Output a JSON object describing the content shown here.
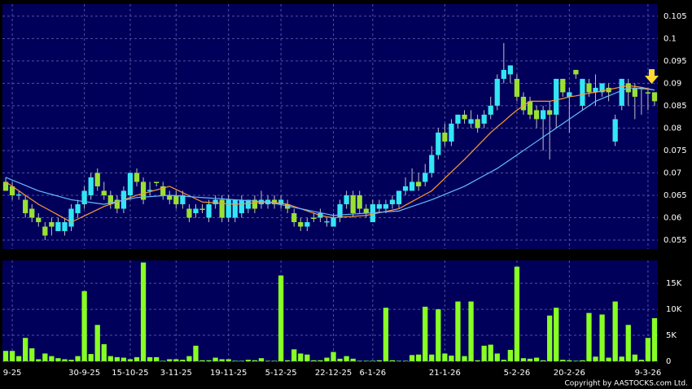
{
  "chart_data": {
    "type": "candlestick",
    "copyright": "Copyright by AASTOCKS.com Ltd.",
    "categories": [
      null,
      "9-25",
      null,
      null,
      null,
      null,
      null,
      null,
      null,
      null,
      null,
      null,
      "30-9-25",
      null,
      null,
      null,
      null,
      null,
      null,
      "15-10-25",
      null,
      null,
      null,
      null,
      null,
      null,
      "3-11-25",
      null,
      null,
      null,
      null,
      null,
      null,
      null,
      "19-11-25",
      null,
      null,
      null,
      null,
      null,
      null,
      null,
      "5-12-25",
      null,
      null,
      null,
      null,
      null,
      null,
      null,
      "22-12-25",
      null,
      null,
      null,
      null,
      null,
      "6-1-26",
      null,
      null,
      null,
      null,
      null,
      null,
      null,
      null,
      null,
      null,
      "21-1-26",
      null,
      null,
      null,
      null,
      null,
      null,
      null,
      null,
      null,
      null,
      "5-2-26",
      null,
      null,
      null,
      null,
      null,
      null,
      null,
      "20-2-26",
      null,
      null,
      null,
      null,
      null,
      null,
      null,
      null,
      null,
      null,
      null,
      "9-3-26",
      null
    ],
    "candles": [
      [
        0.068,
        0.069,
        0.066,
        0.066
      ],
      [
        0.067,
        0.068,
        0.064,
        0.065
      ],
      [
        0.065,
        0.066,
        0.064,
        0.0652
      ],
      [
        0.064,
        0.065,
        0.06,
        0.061
      ],
      [
        0.062,
        0.063,
        0.059,
        0.06
      ],
      [
        0.06,
        0.061,
        0.058,
        0.059
      ],
      [
        0.058,
        0.059,
        0.055,
        0.056
      ],
      [
        0.059,
        0.06,
        0.056,
        0.058
      ],
      [
        0.057,
        0.06,
        0.057,
        0.059
      ],
      [
        0.057,
        0.06,
        0.056,
        0.059
      ],
      [
        0.058,
        0.063,
        0.057,
        0.062
      ],
      [
        0.061,
        0.064,
        0.06,
        0.063
      ],
      [
        0.063,
        0.067,
        0.062,
        0.066
      ],
      [
        0.065,
        0.07,
        0.064,
        0.069
      ],
      [
        0.07,
        0.071,
        0.066,
        0.067
      ],
      [
        0.066,
        0.068,
        0.064,
        0.065
      ],
      [
        0.065,
        0.066,
        0.062,
        0.063
      ],
      [
        0.064,
        0.065,
        0.061,
        0.062
      ],
      [
        0.062,
        0.067,
        0.061,
        0.066
      ],
      [
        0.065,
        0.07,
        0.064,
        0.07
      ],
      [
        0.07,
        0.071,
        0.067,
        0.068
      ],
      [
        0.068,
        0.069,
        0.063,
        0.064
      ],
      [
        0.066,
        0.068,
        0.065,
        0.0662
      ],
      [
        0.068,
        0.068,
        0.067,
        0.0678
      ],
      [
        0.067,
        0.068,
        0.064,
        0.065
      ],
      [
        0.065,
        0.066,
        0.063,
        0.064
      ],
      [
        0.065,
        0.066,
        0.062,
        0.063
      ],
      [
        0.063,
        0.066,
        0.062,
        0.065
      ],
      [
        0.062,
        0.063,
        0.059,
        0.06
      ],
      [
        0.061,
        0.063,
        0.06,
        0.062
      ],
      [
        0.062,
        0.063,
        0.061,
        0.0618
      ],
      [
        0.06,
        0.064,
        0.059,
        0.063
      ],
      [
        0.063,
        0.065,
        0.062,
        0.064
      ],
      [
        0.064,
        0.065,
        0.059,
        0.06
      ],
      [
        0.06,
        0.065,
        0.059,
        0.064
      ],
      [
        0.06,
        0.064,
        0.059,
        0.064
      ],
      [
        0.061,
        0.065,
        0.06,
        0.064
      ],
      [
        0.062,
        0.064,
        0.061,
        0.064
      ],
      [
        0.064,
        0.065,
        0.061,
        0.062
      ],
      [
        0.063,
        0.066,
        0.062,
        0.064
      ],
      [
        0.063,
        0.065,
        0.062,
        0.064
      ],
      [
        0.064,
        0.065,
        0.062,
        0.063
      ],
      [
        0.063,
        0.065,
        0.062,
        0.064
      ],
      [
        0.063,
        0.064,
        0.061,
        0.062
      ],
      [
        0.061,
        0.062,
        0.058,
        0.059
      ],
      [
        0.059,
        0.06,
        0.057,
        0.058
      ],
      [
        0.058,
        0.06,
        0.057,
        0.059
      ],
      [
        0.06,
        0.061,
        0.059,
        0.0598
      ],
      [
        0.06,
        0.062,
        0.059,
        0.061
      ],
      [
        0.059,
        0.06,
        0.058,
        0.0592
      ],
      [
        0.058,
        0.061,
        0.058,
        0.06
      ],
      [
        0.06,
        0.064,
        0.059,
        0.063
      ],
      [
        0.063,
        0.066,
        0.062,
        0.065
      ],
      [
        0.065,
        0.066,
        0.06,
        0.061
      ],
      [
        0.065,
        0.066,
        0.061,
        0.062
      ],
      [
        0.062,
        0.063,
        0.06,
        0.061
      ],
      [
        0.059,
        0.064,
        0.059,
        0.063
      ],
      [
        0.062,
        0.064,
        0.061,
        0.063
      ],
      [
        0.062,
        0.064,
        0.061,
        0.063
      ],
      [
        0.063,
        0.065,
        0.062,
        0.064
      ],
      [
        0.063,
        0.066,
        0.062,
        0.066
      ],
      [
        0.066,
        0.069,
        0.065,
        0.067
      ],
      [
        0.066,
        0.071,
        0.066,
        0.068
      ],
      [
        0.068,
        0.07,
        0.066,
        0.067
      ],
      [
        0.068,
        0.072,
        0.067,
        0.07
      ],
      [
        0.07,
        0.076,
        0.069,
        0.074
      ],
      [
        0.074,
        0.08,
        0.073,
        0.079
      ],
      [
        0.079,
        0.081,
        0.076,
        0.077
      ],
      [
        0.077,
        0.082,
        0.076,
        0.081
      ],
      [
        0.081,
        0.083,
        0.08,
        0.083
      ],
      [
        0.083,
        0.084,
        0.081,
        0.082
      ],
      [
        0.081,
        0.084,
        0.08,
        0.082
      ],
      [
        0.082,
        0.083,
        0.079,
        0.08
      ],
      [
        0.081,
        0.084,
        0.08,
        0.083
      ],
      [
        0.083,
        0.087,
        0.082,
        0.085
      ],
      [
        0.085,
        0.092,
        0.084,
        0.091
      ],
      [
        0.091,
        0.099,
        0.09,
        0.093
      ],
      [
        0.092,
        0.094,
        0.09,
        0.094
      ],
      [
        0.091,
        0.092,
        0.086,
        0.087
      ],
      [
        0.087,
        0.088,
        0.083,
        0.084
      ],
      [
        0.086,
        0.087,
        0.082,
        0.083
      ],
      [
        0.084,
        0.085,
        0.08,
        0.082
      ],
      [
        0.082,
        0.085,
        0.075,
        0.084
      ],
      [
        0.084,
        0.086,
        0.073,
        0.083
      ],
      [
        0.083,
        0.091,
        0.08,
        0.091
      ],
      [
        0.091,
        0.091,
        0.087,
        0.088
      ],
      [
        0.087,
        0.089,
        0.079,
        0.088
      ],
      [
        0.093,
        0.093,
        0.091,
        0.092
      ],
      [
        0.085,
        0.091,
        0.084,
        0.091
      ],
      [
        0.09,
        0.091,
        0.087,
        0.088
      ],
      [
        0.088,
        0.092,
        0.085,
        0.089
      ],
      [
        0.088,
        0.09,
        0.087,
        0.09
      ],
      [
        0.089,
        0.09,
        0.086,
        0.088
      ],
      [
        0.077,
        0.083,
        0.076,
        0.082
      ],
      [
        0.085,
        0.091,
        0.084,
        0.091
      ],
      [
        0.09,
        0.091,
        0.085,
        0.088
      ],
      [
        0.089,
        0.09,
        0.082,
        0.087
      ],
      [
        0.089,
        0.089,
        0.083,
        0.0888
      ],
      [
        0.088,
        0.089,
        0.084,
        0.0878
      ],
      [
        0.088,
        0.088,
        0.085,
        0.086
      ]
    ],
    "volume": [
      2000,
      2000,
      1000,
      4500,
      2500,
      400,
      1500,
      1000,
      600,
      400,
      300,
      1000,
      13500,
      1400,
      7000,
      3300,
      1000,
      800,
      700,
      400,
      800,
      19000,
      800,
      800,
      100,
      400,
      400,
      300,
      1000,
      3000,
      200,
      200,
      700,
      400,
      400,
      100,
      100,
      300,
      200,
      600,
      100,
      100,
      16500,
      200,
      2300,
      1500,
      1300,
      200,
      200,
      700,
      1800,
      500,
      1000,
      500,
      100,
      100,
      100,
      200,
      10300,
      200,
      100,
      100,
      1200,
      1300,
      10500,
      1300,
      10000,
      1500,
      1100,
      11500,
      1000,
      11500,
      200,
      3000,
      3200,
      1500,
      300,
      2200,
      18200,
      600,
      500,
      700,
      200,
      8800,
      10300,
      300,
      200,
      100,
      200,
      9300,
      900,
      9000,
      700,
      11500,
      900,
      7000,
      1300,
      300,
      4500,
      8300
    ],
    "ma": [
      {
        "color": "#ff9933",
        "values": [
          0.068,
          0.067,
          0.066,
          0.065,
          0.064,
          0.063,
          0.0622,
          0.0614,
          0.0606,
          0.0598,
          0.059,
          0.0597,
          0.0604,
          0.0611,
          0.0618,
          0.0625,
          0.063,
          0.0635,
          0.064,
          0.0645,
          0.065,
          0.0654,
          0.0658,
          0.0662,
          0.0666,
          0.067,
          0.0663,
          0.0656,
          0.0649,
          0.0642,
          0.0635,
          0.0634,
          0.0633,
          0.0632,
          0.0631,
          0.063,
          0.0631,
          0.0632,
          0.0633,
          0.0634,
          0.0635,
          0.0634,
          0.0632,
          0.063,
          0.0625,
          0.062,
          0.0615,
          0.061,
          0.0605,
          0.0602,
          0.06,
          0.0601,
          0.0602,
          0.0603,
          0.0604,
          0.0605,
          0.0608,
          0.0611,
          0.0614,
          0.0617,
          0.062,
          0.0628,
          0.0636,
          0.0644,
          0.0652,
          0.066,
          0.0674,
          0.0688,
          0.0702,
          0.0716,
          0.073,
          0.0745,
          0.076,
          0.0775,
          0.079,
          0.0803,
          0.0815,
          0.0828,
          0.084,
          0.085,
          0.086,
          0.086,
          0.086,
          0.086,
          0.0863,
          0.0866,
          0.087,
          0.0872,
          0.0875,
          0.0878,
          0.088,
          0.0883,
          0.0886,
          0.0889,
          0.0892,
          0.0895,
          0.0893,
          0.0891,
          0.0888,
          0.0885
        ]
      },
      {
        "color": "#66bbff",
        "values": [
          0.069,
          0.0684,
          0.0678,
          0.0672,
          0.0666,
          0.066,
          0.0656,
          0.0652,
          0.0648,
          0.0644,
          0.064,
          0.0638,
          0.0636,
          0.0634,
          0.0632,
          0.063,
          0.0633,
          0.0636,
          0.0639,
          0.0642,
          0.0645,
          0.0646,
          0.0647,
          0.0648,
          0.0649,
          0.065,
          0.0649,
          0.0648,
          0.0647,
          0.0646,
          0.0645,
          0.0644,
          0.0643,
          0.0642,
          0.0641,
          0.064,
          0.0639,
          0.0638,
          0.0637,
          0.0636,
          0.0635,
          0.0632,
          0.0629,
          0.0626,
          0.0623,
          0.062,
          0.0617,
          0.0614,
          0.0611,
          0.0608,
          0.0605,
          0.0606,
          0.0607,
          0.0608,
          0.0609,
          0.061,
          0.0611,
          0.0612,
          0.0613,
          0.0614,
          0.0615,
          0.062,
          0.0625,
          0.063,
          0.0635,
          0.064,
          0.0646,
          0.0652,
          0.0658,
          0.0664,
          0.067,
          0.0678,
          0.0686,
          0.0694,
          0.0702,
          0.071,
          0.072,
          0.073,
          0.074,
          0.075,
          0.076,
          0.077,
          0.078,
          0.079,
          0.08,
          0.081,
          0.082,
          0.083,
          0.084,
          0.085,
          0.086,
          0.0866,
          0.0872,
          0.0878,
          0.0884,
          0.089,
          0.0889,
          0.0888,
          0.0887,
          0.0885
        ]
      }
    ],
    "up_color": "#33e6f5",
    "down_color": "#99e033",
    "volume_color": "#88ff22",
    "ylim": [
      0.053,
      0.1077
    ],
    "yticks": [
      0.055,
      0.06,
      0.065,
      0.07,
      0.075,
      0.08,
      0.085,
      0.09,
      0.095,
      0.1,
      0.105
    ],
    "vlim": [
      0,
      19400
    ],
    "vticks": [
      0,
      {
        "value": 5000,
        "label": "5K"
      },
      {
        "value": 10000,
        "label": "10K"
      },
      {
        "value": 15000,
        "label": "15K"
      }
    ],
    "grid": true
  }
}
